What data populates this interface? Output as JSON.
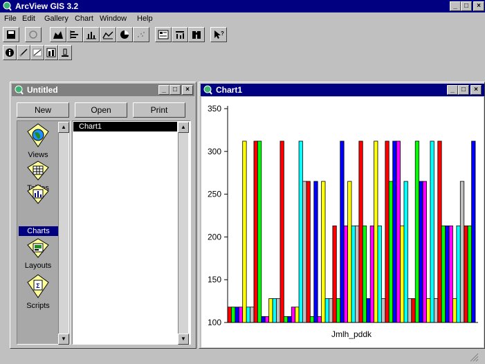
{
  "app": {
    "title": "ArcView GIS 3.2"
  },
  "menu": [
    "File",
    "Edit",
    "Gallery",
    "Chart",
    "Window",
    "Help"
  ],
  "project_window": {
    "title": "Untitled",
    "buttons": {
      "new": "New",
      "open": "Open",
      "print": "Print"
    },
    "categories": [
      "Views",
      "Tables",
      "Charts",
      "Layouts",
      "Scripts"
    ],
    "selected_category": "Charts",
    "documents": [
      "Chart1"
    ]
  },
  "chart_window": {
    "title": "Chart1"
  },
  "chart_data": {
    "type": "bar",
    "xlabel": "Jmlh_pddk",
    "ylim": [
      100,
      350
    ],
    "y_ticks": [
      100,
      150,
      200,
      250,
      300,
      350
    ],
    "colors": [
      "#ff0000",
      "#00ff00",
      "#0000ff",
      "#ff00ff",
      "#ffff00",
      "#00ffff",
      "#c0c0c0"
    ],
    "values": [
      118,
      118,
      118,
      118,
      312,
      118,
      118,
      312,
      312,
      107,
      107,
      128,
      128,
      128,
      312,
      107,
      107,
      118,
      118,
      312,
      265,
      265,
      107,
      265,
      107,
      265,
      128,
      128,
      213,
      128,
      312,
      213,
      265,
      213,
      213,
      312,
      213,
      128,
      213,
      312,
      213,
      128,
      312,
      265,
      312,
      312,
      213,
      265,
      128,
      128,
      312,
      265,
      265,
      128,
      312,
      128,
      312,
      213,
      213,
      213,
      128,
      213,
      265,
      213,
      213,
      312
    ]
  }
}
